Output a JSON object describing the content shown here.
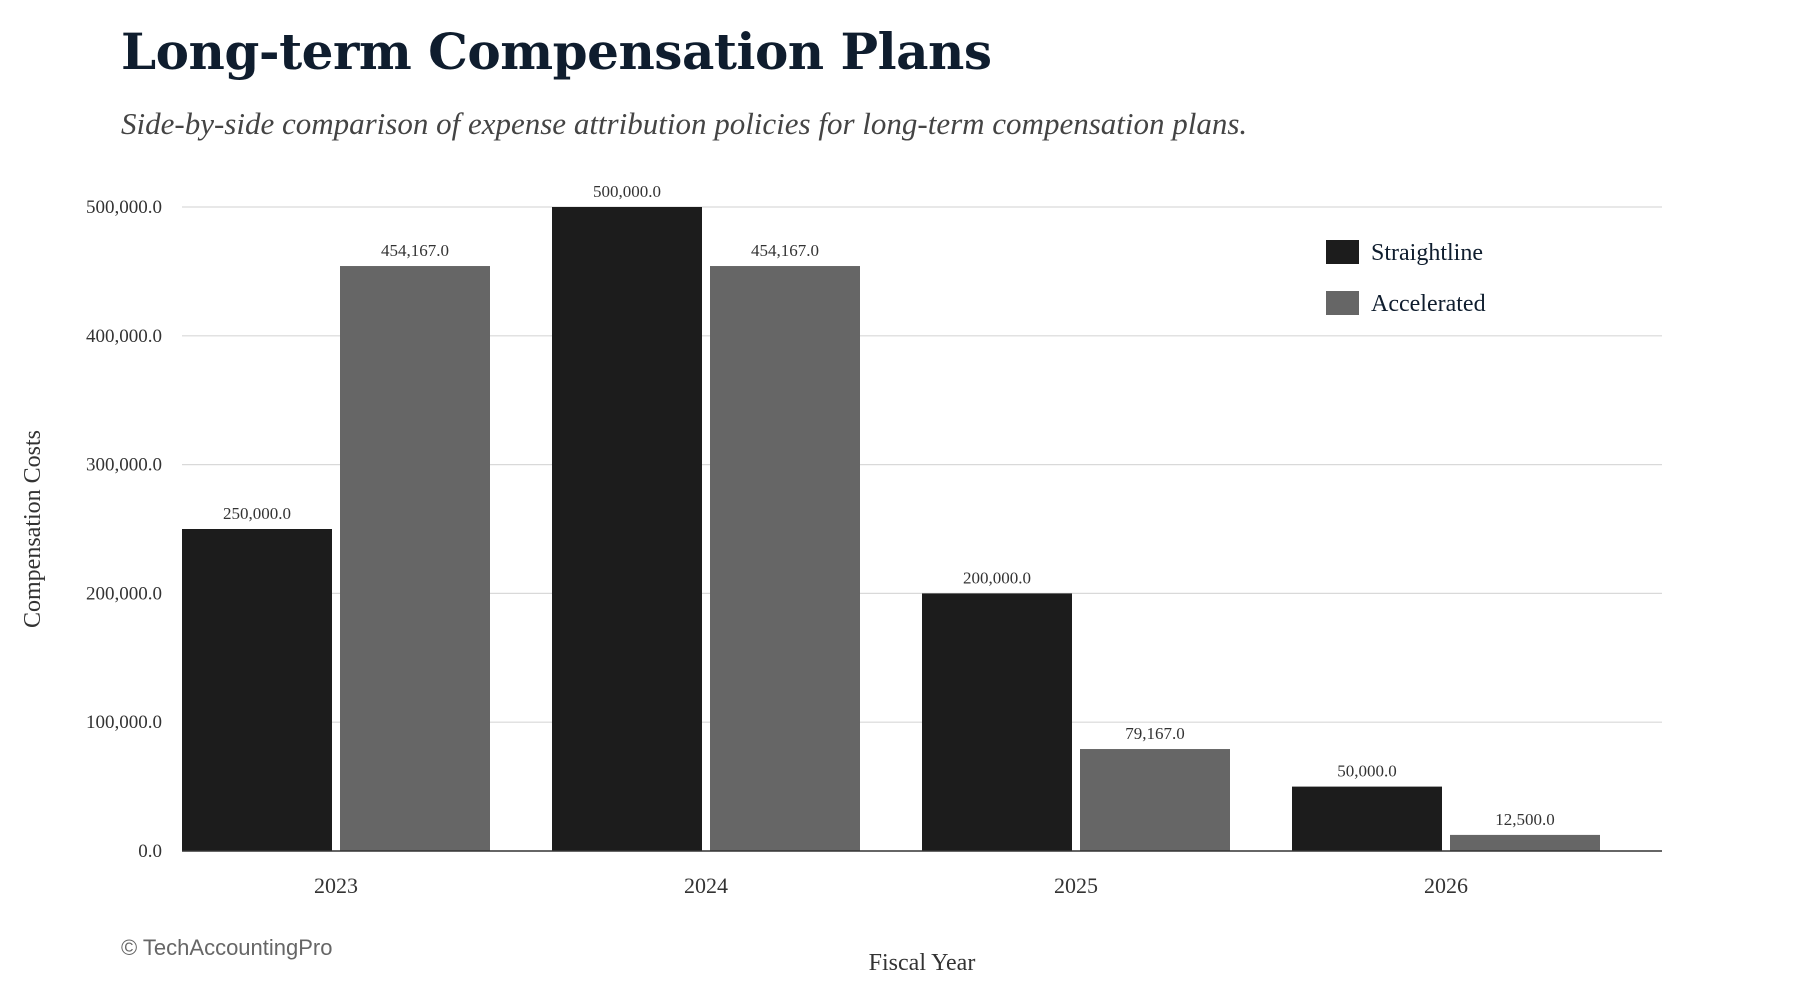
{
  "header": {
    "title": "Long-term Compensation Plans",
    "subtitle": "Side-by-side comparison of expense attribution policies for long-term compensation plans."
  },
  "footer": {
    "credit": "© TechAccountingPro"
  },
  "colors": {
    "straightline": "#1c1c1c",
    "accelerated": "#666666",
    "grid": "#d9d9d9",
    "axis": "#333333"
  },
  "chart_data": {
    "type": "bar",
    "title": "Long-term Compensation Plans",
    "subtitle": "Side-by-side comparison of expense attribution policies for long-term compensation plans.",
    "xlabel": "Fiscal Year",
    "ylabel": "Compensation Costs",
    "categories": [
      "2023",
      "2024",
      "2025",
      "2026"
    ],
    "series": [
      {
        "name": "Straightline",
        "values": [
          250000.0,
          500000.0,
          200000.0,
          50000.0
        ],
        "labels": [
          "250,000.0",
          "500,000.0",
          "200,000.0",
          "50,000.0"
        ]
      },
      {
        "name": "Accelerated",
        "values": [
          454167.0,
          454167.0,
          79167.0,
          12500.0
        ],
        "labels": [
          "454,167.0",
          "454,167.0",
          "79,167.0",
          "12,500.0"
        ]
      }
    ],
    "ylim": [
      0,
      500000
    ],
    "yticks": [
      0,
      100000,
      200000,
      300000,
      400000,
      500000
    ],
    "ytick_labels": [
      "0.0",
      "100,000.0",
      "200,000.0",
      "300,000.0",
      "400,000.0",
      "500,000.0"
    ],
    "grid": true,
    "legend_position": "top-right"
  }
}
